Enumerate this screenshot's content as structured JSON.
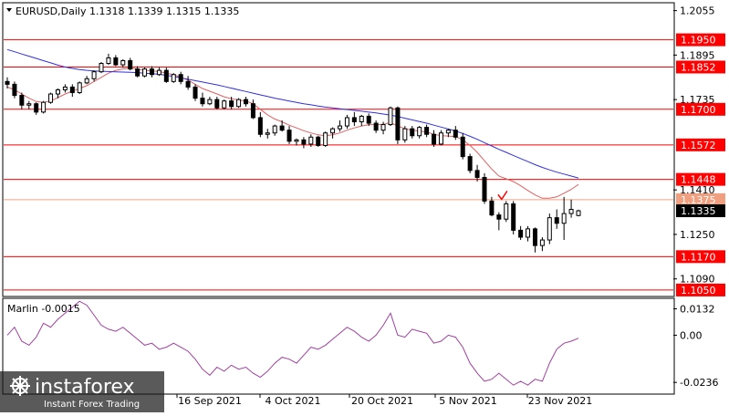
{
  "header": {
    "symbol_line": "EURUSD,Daily  1.1318 1.1339 1.1315 1.1335"
  },
  "watermark": {
    "brand": "instaforex",
    "tagline": "Instant Forex Trading"
  },
  "colors": {
    "level_line": "#ff0000",
    "level_label_bg": "#ff0000",
    "price_label_bg": "#000000",
    "ma_fast": "#e06060",
    "ma_slow": "#3030e0",
    "oscillator": "#a040a0",
    "candle_up": "#ffffff",
    "candle_down": "#000000",
    "arrow": "#ff0000"
  },
  "chart_data": [
    {
      "type": "candlestick",
      "title": "EURUSD,Daily",
      "ohlc_last": {
        "open": 1.1318,
        "high": 1.1339,
        "low": 1.1315,
        "close": 1.1335
      },
      "x_tick_labels": [
        "16 Sep 2021",
        "4 Oct 2021",
        "20 Oct 2021",
        "5 Nov 2021",
        "23 Nov 2021"
      ],
      "y_tick_labels": [
        "1.2055",
        "1.1895",
        "1.1735",
        "1.1410",
        "1.1250",
        "1.1090"
      ],
      "ylim": [
        1.103,
        1.208
      ],
      "horizontal_levels": [
        {
          "value": 1.195,
          "label": "1.1950"
        },
        {
          "value": 1.1852,
          "label": "1.1852"
        },
        {
          "value": 1.17,
          "label": "1.1700"
        },
        {
          "value": 1.1572,
          "label": "1.1572"
        },
        {
          "value": 1.1448,
          "label": "1.1448"
        },
        {
          "value": 1.117,
          "label": "1.1170"
        },
        {
          "value": 1.105,
          "label": "1.1050"
        }
      ],
      "dashed_level": {
        "value": 1.1375,
        "label": "1.1375"
      },
      "current_price": {
        "value": 1.1335,
        "label": "1.1335"
      },
      "candles": [
        [
          1.18,
          1.1815,
          1.1775,
          1.179
        ],
        [
          1.179,
          1.18,
          1.174,
          1.175
        ],
        [
          1.175,
          1.176,
          1.17,
          1.1715
        ],
        [
          1.1715,
          1.173,
          1.17,
          1.172
        ],
        [
          1.172,
          1.1725,
          1.168,
          1.169
        ],
        [
          1.169,
          1.173,
          1.1685,
          1.1725
        ],
        [
          1.1725,
          1.176,
          1.172,
          1.1755
        ],
        [
          1.1755,
          1.1775,
          1.174,
          1.177
        ],
        [
          1.177,
          1.179,
          1.176,
          1.178
        ],
        [
          1.178,
          1.179,
          1.1745,
          1.176
        ],
        [
          1.176,
          1.18,
          1.1755,
          1.1795
        ],
        [
          1.1795,
          1.182,
          1.179,
          1.181
        ],
        [
          1.181,
          1.184,
          1.18,
          1.1835
        ],
        [
          1.1835,
          1.187,
          1.183,
          1.1865
        ],
        [
          1.1865,
          1.19,
          1.186,
          1.1885
        ],
        [
          1.1885,
          1.1895,
          1.1855,
          1.186
        ],
        [
          1.186,
          1.188,
          1.185,
          1.1875
        ],
        [
          1.1875,
          1.1885,
          1.184,
          1.1845
        ],
        [
          1.1845,
          1.1855,
          1.1815,
          1.182
        ],
        [
          1.182,
          1.185,
          1.1815,
          1.1845
        ],
        [
          1.1845,
          1.1855,
          1.1815,
          1.1825
        ],
        [
          1.1825,
          1.185,
          1.182,
          1.184
        ],
        [
          1.184,
          1.185,
          1.1795,
          1.18
        ],
        [
          1.18,
          1.183,
          1.1795,
          1.1825
        ],
        [
          1.1825,
          1.1835,
          1.179,
          1.18
        ],
        [
          1.18,
          1.182,
          1.177,
          1.178
        ],
        [
          1.178,
          1.179,
          1.173,
          1.174
        ],
        [
          1.174,
          1.176,
          1.171,
          1.172
        ],
        [
          1.172,
          1.1745,
          1.1715,
          1.1735
        ],
        [
          1.1735,
          1.1745,
          1.17,
          1.1705
        ],
        [
          1.1705,
          1.1735,
          1.17,
          1.173
        ],
        [
          1.173,
          1.1745,
          1.17,
          1.171
        ],
        [
          1.171,
          1.174,
          1.1705,
          1.1735
        ],
        [
          1.1735,
          1.1745,
          1.171,
          1.172
        ],
        [
          1.172,
          1.1735,
          1.1665,
          1.167
        ],
        [
          1.167,
          1.169,
          1.16,
          1.161
        ],
        [
          1.161,
          1.163,
          1.1595,
          1.1615
        ],
        [
          1.1615,
          1.1645,
          1.1605,
          1.164
        ],
        [
          1.164,
          1.166,
          1.162,
          1.1625
        ],
        [
          1.1625,
          1.164,
          1.1575,
          1.1585
        ],
        [
          1.1585,
          1.1595,
          1.157,
          1.159
        ],
        [
          1.159,
          1.16,
          1.156,
          1.1575
        ],
        [
          1.1575,
          1.161,
          1.1565,
          1.16
        ],
        [
          1.16,
          1.1605,
          1.1565,
          1.157
        ],
        [
          1.157,
          1.162,
          1.1565,
          1.1615
        ],
        [
          1.1615,
          1.1635,
          1.1595,
          1.163
        ],
        [
          1.163,
          1.166,
          1.162,
          1.164
        ],
        [
          1.164,
          1.168,
          1.163,
          1.167
        ],
        [
          1.167,
          1.169,
          1.164,
          1.1655
        ],
        [
          1.1655,
          1.168,
          1.164,
          1.1675
        ],
        [
          1.1675,
          1.1685,
          1.164,
          1.165
        ],
        [
          1.165,
          1.166,
          1.1615,
          1.1625
        ],
        [
          1.1625,
          1.1655,
          1.161,
          1.1645
        ],
        [
          1.1645,
          1.171,
          1.164,
          1.1705
        ],
        [
          1.1705,
          1.171,
          1.1575,
          1.159
        ],
        [
          1.159,
          1.164,
          1.158,
          1.163
        ],
        [
          1.163,
          1.164,
          1.1595,
          1.1605
        ],
        [
          1.1605,
          1.164,
          1.1595,
          1.1635
        ],
        [
          1.1635,
          1.1645,
          1.16,
          1.161
        ],
        [
          1.161,
          1.1625,
          1.1565,
          1.1575
        ],
        [
          1.1575,
          1.1625,
          1.157,
          1.1615
        ],
        [
          1.1615,
          1.163,
          1.16,
          1.1625
        ],
        [
          1.1625,
          1.164,
          1.159,
          1.16
        ],
        [
          1.16,
          1.1615,
          1.152,
          1.153
        ],
        [
          1.153,
          1.154,
          1.147,
          1.148
        ],
        [
          1.148,
          1.15,
          1.144,
          1.1455
        ],
        [
          1.1455,
          1.147,
          1.136,
          1.137
        ],
        [
          1.137,
          1.1385,
          1.1315,
          1.132
        ],
        [
          1.132,
          1.133,
          1.1265,
          1.1305
        ],
        [
          1.1305,
          1.137,
          1.1295,
          1.136
        ],
        [
          1.136,
          1.137,
          1.125,
          1.1265
        ],
        [
          1.1265,
          1.128,
          1.123,
          1.124
        ],
        [
          1.124,
          1.128,
          1.1225,
          1.127
        ],
        [
          1.127,
          1.1275,
          1.1185,
          1.121
        ],
        [
          1.121,
          1.124,
          1.119,
          1.123
        ],
        [
          1.123,
          1.1325,
          1.1215,
          1.131
        ],
        [
          1.131,
          1.134,
          1.127,
          1.129
        ],
        [
          1.129,
          1.1385,
          1.123,
          1.1325
        ],
        [
          1.1325,
          1.1375,
          1.131,
          1.134
        ],
        [
          1.1318,
          1.1339,
          1.1315,
          1.1335
        ]
      ],
      "series": [
        {
          "name": "",
          "style": "ma_fast",
          "values": [
            1.178,
            1.177,
            1.1755,
            1.174,
            1.1728,
            1.1725,
            1.173,
            1.1742,
            1.1755,
            1.1765,
            1.1775,
            1.1785,
            1.18,
            1.1815,
            1.183,
            1.184,
            1.1845,
            1.1848,
            1.1845,
            1.184,
            1.1838,
            1.1836,
            1.183,
            1.1825,
            1.1815,
            1.1805,
            1.179,
            1.1775,
            1.1765,
            1.1755,
            1.1745,
            1.1738,
            1.1733,
            1.173,
            1.172,
            1.17,
            1.168,
            1.1665,
            1.1655,
            1.1643,
            1.1633,
            1.1623,
            1.1615,
            1.1608,
            1.1605,
            1.1608,
            1.1615,
            1.1625,
            1.1633,
            1.164,
            1.1645,
            1.1645,
            1.1646,
            1.1652,
            1.164,
            1.163,
            1.1625,
            1.1622,
            1.1618,
            1.161,
            1.1605,
            1.1604,
            1.1602,
            1.159,
            1.157,
            1.1545,
            1.1515,
            1.1485,
            1.146,
            1.145,
            1.144,
            1.1425,
            1.1408,
            1.1392,
            1.138,
            1.138,
            1.1385,
            1.1398,
            1.1412,
            1.143
          ]
        },
        {
          "name": "",
          "style": "ma_slow",
          "values": [
            1.1915,
            1.1907,
            1.1899,
            1.1891,
            1.1883,
            1.1875,
            1.1867,
            1.1859,
            1.1852,
            1.1847,
            1.1843,
            1.184,
            1.1838,
            1.1837,
            1.1836,
            1.1835,
            1.1834,
            1.1833,
            1.1832,
            1.183,
            1.1828,
            1.1826,
            1.1822,
            1.1818,
            1.1813,
            1.1808,
            1.1803,
            1.1798,
            1.1793,
            1.1788,
            1.1782,
            1.1776,
            1.177,
            1.1764,
            1.1758,
            1.1752,
            1.1746,
            1.174,
            1.1735,
            1.173,
            1.1725,
            1.172,
            1.1716,
            1.1712,
            1.1708,
            1.1705,
            1.1702,
            1.1699,
            1.1696,
            1.1693,
            1.169,
            1.1687,
            1.1683,
            1.1679,
            1.1674,
            1.1668,
            1.1662,
            1.1656,
            1.165,
            1.1643,
            1.1636,
            1.1629,
            1.1622,
            1.1613,
            1.1603,
            1.1592,
            1.158,
            1.1568,
            1.1556,
            1.1545,
            1.1534,
            1.1523,
            1.1512,
            1.1501,
            1.1491,
            1.1482,
            1.1474,
            1.1467,
            1.146,
            1.1453
          ]
        }
      ],
      "annotation_arrow": {
        "index": 68,
        "value": 1.137
      }
    },
    {
      "type": "line",
      "title": "Marlin -0.0015",
      "y_tick_labels": [
        "0.0132",
        "0.00",
        "-0.0236"
      ],
      "ylim": [
        -0.029,
        0.018
      ],
      "series": [
        {
          "name": "Marlin",
          "values": [
            0.0,
            0.004,
            -0.003,
            -0.005,
            -0.001,
            0.006,
            0.004,
            0.008,
            0.011,
            0.014,
            0.017,
            0.015,
            0.01,
            0.005,
            0.003,
            0.002,
            0.004,
            0.001,
            -0.002,
            -0.005,
            -0.004,
            -0.007,
            -0.006,
            -0.004,
            -0.006,
            -0.008,
            -0.012,
            -0.017,
            -0.02,
            -0.016,
            -0.018,
            -0.015,
            -0.017,
            -0.016,
            -0.019,
            -0.021,
            -0.018,
            -0.014,
            -0.011,
            -0.012,
            -0.014,
            -0.01,
            -0.006,
            -0.007,
            -0.005,
            -0.002,
            0.001,
            0.004,
            0.002,
            -0.001,
            -0.003,
            0.0,
            0.005,
            0.011,
            0.0,
            -0.001,
            0.003,
            0.002,
            0.001,
            -0.004,
            -0.003,
            0.0,
            -0.001,
            -0.006,
            -0.014,
            -0.019,
            -0.023,
            -0.022,
            -0.019,
            -0.022,
            -0.025,
            -0.023,
            -0.025,
            -0.022,
            -0.023,
            -0.014,
            -0.007,
            -0.004,
            -0.003,
            -0.0015
          ]
        }
      ]
    }
  ]
}
